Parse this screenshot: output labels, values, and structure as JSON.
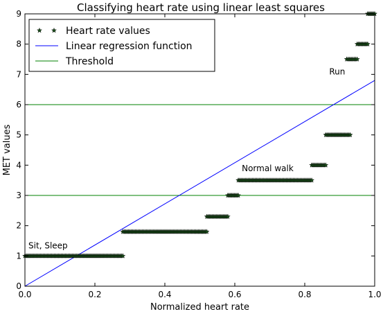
{
  "chart_data": {
    "type": "scatter",
    "title": "Classifying heart rate using linear least squares",
    "xlabel": "Normalized heart rate",
    "ylabel": "MET values",
    "xlim": [
      0.0,
      1.0
    ],
    "ylim": [
      0,
      9
    ],
    "xticks": [
      "0.0",
      "0.2",
      "0.4",
      "0.6",
      "0.8",
      "1.0"
    ],
    "yticks": [
      "0",
      "1",
      "2",
      "3",
      "4",
      "5",
      "6",
      "7",
      "8",
      "9"
    ],
    "grid": false,
    "legend_position": "top-left",
    "colors": {
      "points": "#1a4d1a",
      "regression": "#0000ff",
      "threshold": "#008000"
    },
    "series": [
      {
        "name": "Heart rate values",
        "kind": "scatter",
        "marker": "star",
        "clusters": [
          {
            "y": 1.0,
            "x_from": 0.0,
            "x_to": 0.28
          },
          {
            "y": 1.8,
            "x_from": 0.28,
            "x_to": 0.52
          },
          {
            "y": 2.3,
            "x_from": 0.52,
            "x_to": 0.58
          },
          {
            "y": 3.0,
            "x_from": 0.58,
            "x_to": 0.61
          },
          {
            "y": 3.5,
            "x_from": 0.61,
            "x_to": 0.82
          },
          {
            "y": 4.0,
            "x_from": 0.82,
            "x_to": 0.86
          },
          {
            "y": 5.0,
            "x_from": 0.86,
            "x_to": 0.93
          },
          {
            "y": 7.5,
            "x_from": 0.92,
            "x_to": 0.95
          },
          {
            "y": 8.0,
            "x_from": 0.95,
            "x_to": 0.98
          },
          {
            "y": 9.0,
            "x_from": 0.98,
            "x_to": 1.0
          }
        ]
      },
      {
        "name": "Linear regression function",
        "kind": "line",
        "points": [
          [
            0.0,
            0.0
          ],
          [
            1.0,
            6.8
          ]
        ]
      },
      {
        "name": "Threshold",
        "kind": "hline",
        "values": [
          3,
          6
        ]
      }
    ],
    "annotations": [
      {
        "text": "Sit, Sleep",
        "x": 0.01,
        "y": 1.25
      },
      {
        "text": "Normal walk",
        "x": 0.62,
        "y": 3.8
      },
      {
        "text": "Run",
        "x": 0.87,
        "y": 7.0
      }
    ]
  }
}
